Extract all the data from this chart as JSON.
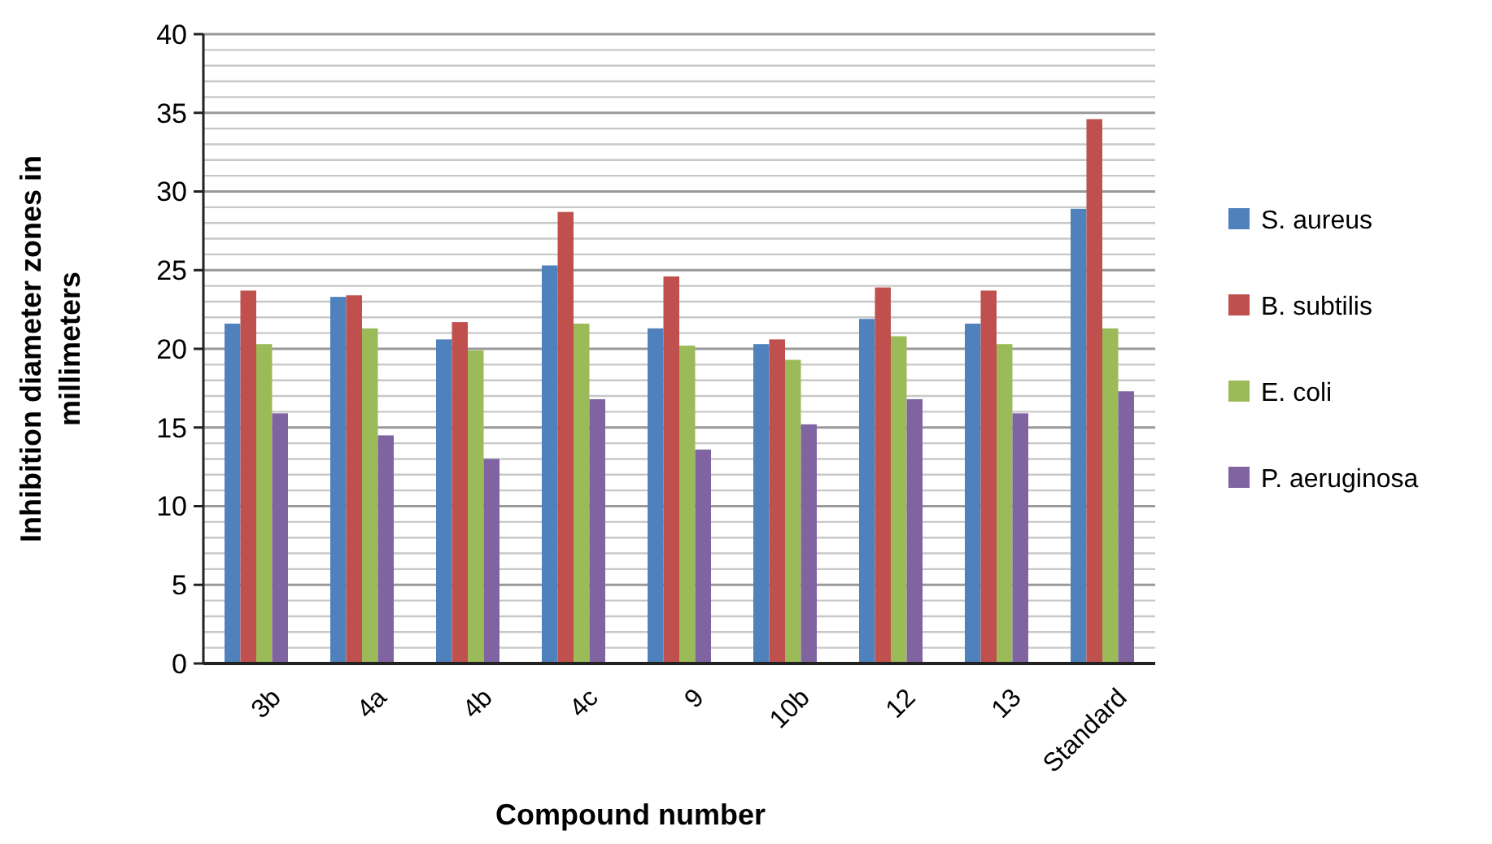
{
  "chart_data": {
    "type": "bar",
    "xlabel": "Compound number",
    "ylabel": "Inhibition diameter zones in millimeters",
    "categories": [
      "3b",
      "4a",
      "4b",
      "4c",
      "9",
      "10b",
      "12",
      "13",
      "Standard"
    ],
    "series": [
      {
        "name": "S. aureus",
        "color": "#4f81bd",
        "values": [
          21.6,
          23.3,
          20.6,
          25.3,
          21.3,
          20.3,
          21.9,
          21.6,
          28.9
        ]
      },
      {
        "name": "B. subtilis",
        "color": "#c0504d",
        "values": [
          23.7,
          23.4,
          21.7,
          28.7,
          24.6,
          20.6,
          23.9,
          23.7,
          34.6
        ]
      },
      {
        "name": "E. coli",
        "color": "#9bbb59",
        "values": [
          20.3,
          21.3,
          19.9,
          21.6,
          20.2,
          19.3,
          20.8,
          20.3,
          21.3
        ]
      },
      {
        "name": "P. aeruginosa",
        "color": "#8064a2",
        "values": [
          15.9,
          14.5,
          13.0,
          16.8,
          13.6,
          15.2,
          16.8,
          15.9,
          17.3
        ]
      }
    ],
    "ylim": [
      0,
      40
    ],
    "yticks": [
      0,
      5,
      10,
      15,
      20,
      25,
      30,
      35,
      40
    ],
    "grid": true,
    "legend": "right"
  }
}
